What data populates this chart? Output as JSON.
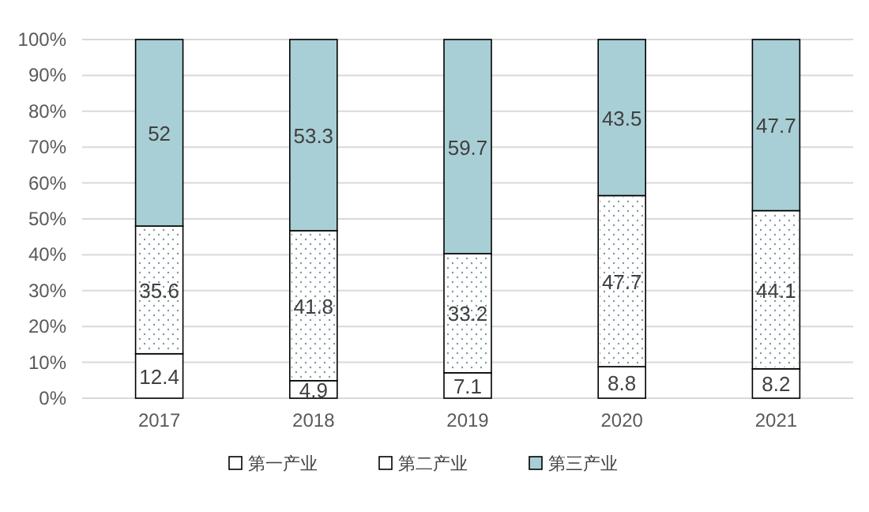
{
  "chart_data": {
    "type": "bar",
    "stacked": true,
    "categories": [
      "2017",
      "2018",
      "2019",
      "2020",
      "2021"
    ],
    "series": [
      {
        "name": "第一产业",
        "color": "#ffffff",
        "values": [
          12.4,
          4.9,
          7.1,
          8.8,
          8.2
        ]
      },
      {
        "name": "第二产业",
        "color": "#ffffff",
        "values": [
          35.6,
          41.8,
          33.2,
          47.7,
          44.1
        ]
      },
      {
        "name": "第三产业",
        "color": "#a9cfd6",
        "values": [
          52,
          53.3,
          59.7,
          43.5,
          47.7
        ]
      }
    ],
    "ylim": [
      0,
      100
    ],
    "yticks": [
      {
        "value": 0,
        "label": "0%"
      },
      {
        "value": 10,
        "label": "10%"
      },
      {
        "value": 20,
        "label": "20%"
      },
      {
        "value": 30,
        "label": "30%"
      },
      {
        "value": 40,
        "label": "40%"
      },
      {
        "value": 50,
        "label": "50%"
      },
      {
        "value": 60,
        "label": "60%"
      },
      {
        "value": 70,
        "label": "70%"
      },
      {
        "value": 80,
        "label": "80%"
      },
      {
        "value": 90,
        "label": "90%"
      },
      {
        "value": 100,
        "label": "100%"
      }
    ],
    "grid": "y",
    "legend": "bottom",
    "data_labels": true
  }
}
